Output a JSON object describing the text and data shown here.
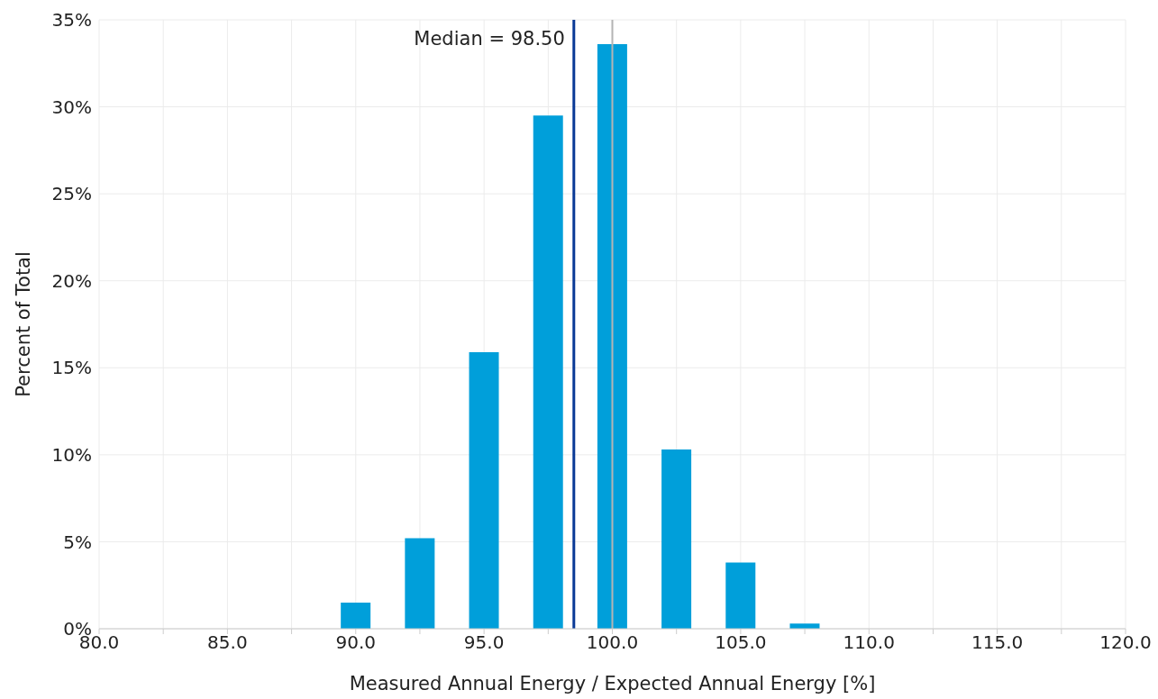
{
  "chart_data": {
    "type": "bar",
    "xlabel": "Measured Annual Energy / Expected Annual Energy [%]",
    "ylabel": "Percent of Total",
    "x": [
      90,
      92.5,
      95,
      97.5,
      100,
      102.5,
      105,
      107.5
    ],
    "values": [
      1.5,
      5.2,
      15.9,
      29.5,
      33.6,
      10.3,
      3.8,
      0.3
    ],
    "color": "#009fda",
    "xlim": [
      80,
      120
    ],
    "xticks": [
      {
        "value": 80,
        "label": "80.0"
      },
      {
        "value": 82.5,
        "label": null
      },
      {
        "value": 85,
        "label": "85.0"
      },
      {
        "value": 87.5,
        "label": null
      },
      {
        "value": 90,
        "label": "90.0"
      },
      {
        "value": 92.5,
        "label": null
      },
      {
        "value": 95,
        "label": "95.0"
      },
      {
        "value": 97.5,
        "label": null
      },
      {
        "value": 100,
        "label": "100.0"
      },
      {
        "value": 102.5,
        "label": null
      },
      {
        "value": 105,
        "label": "105.0"
      },
      {
        "value": 107.5,
        "label": null
      },
      {
        "value": 110,
        "label": "110.0"
      },
      {
        "value": 112.5,
        "label": null
      },
      {
        "value": 115,
        "label": "115.0"
      },
      {
        "value": 117.5,
        "label": null
      },
      {
        "value": 120,
        "label": "120.0"
      }
    ],
    "ylim": [
      0,
      35
    ],
    "yticks": [
      {
        "value": 0,
        "label": "0%"
      },
      {
        "value": 5,
        "label": "5%"
      },
      {
        "value": 10,
        "label": "10%"
      },
      {
        "value": 15,
        "label": "15%"
      },
      {
        "value": 20,
        "label": "20%"
      },
      {
        "value": 25,
        "label": "25%"
      },
      {
        "value": 30,
        "label": "30%"
      },
      {
        "value": 35,
        "label": "35%"
      }
    ],
    "grid": true,
    "ref_lines": [
      {
        "axis": "x",
        "value": 98.5,
        "label": "Median = 98.50",
        "color": "#0a3a96"
      },
      {
        "axis": "x",
        "value": 100,
        "label": null,
        "color": "#b4b4b4"
      }
    ]
  }
}
